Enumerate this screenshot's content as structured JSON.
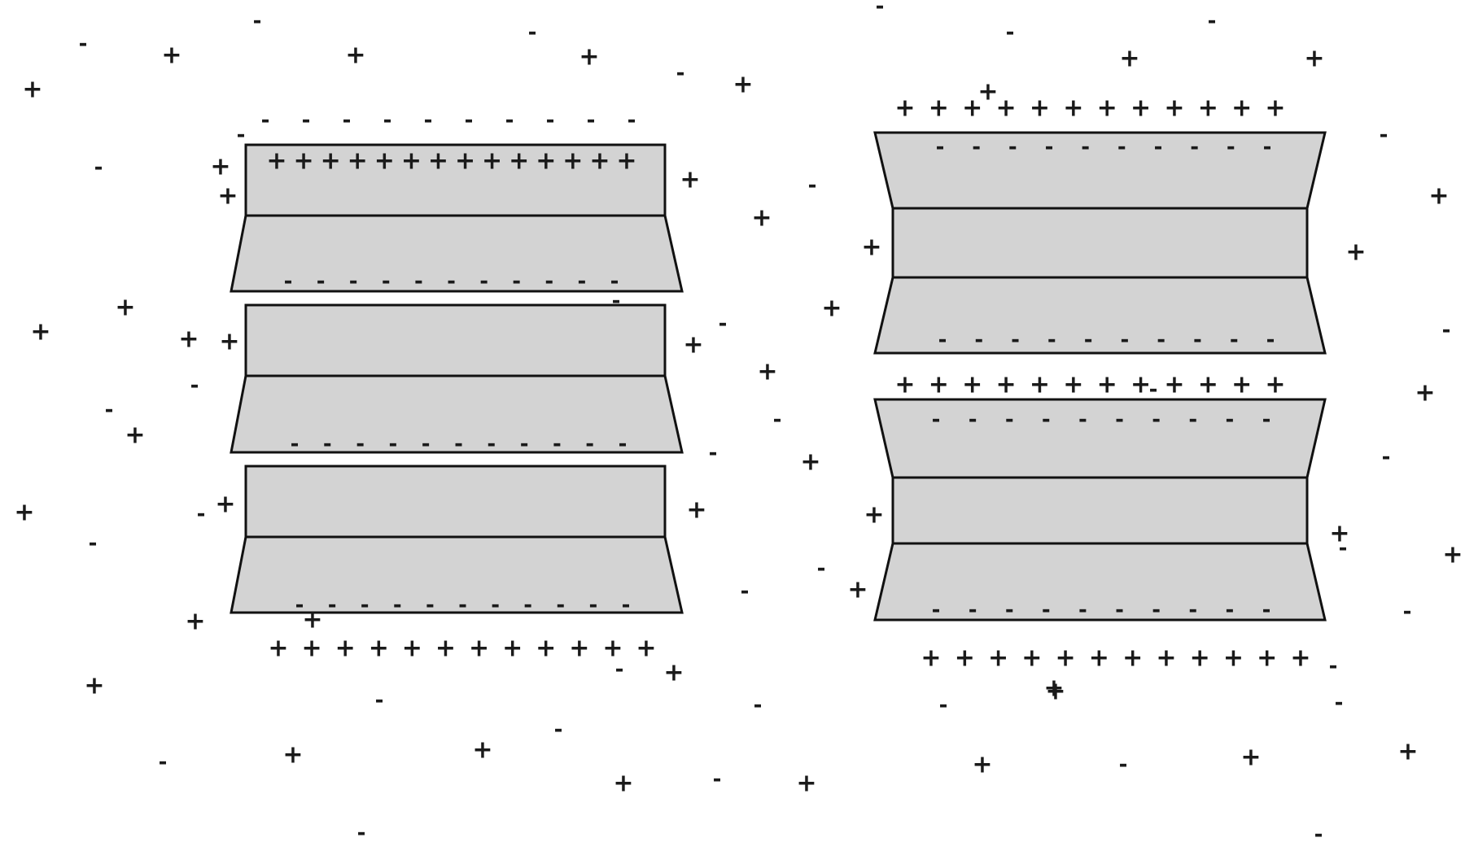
{
  "symbols": {
    "positive": "+",
    "negative": "-"
  },
  "colors": {
    "block_fill": "#d3d3d3",
    "outline": "#111111",
    "charge": "#1a1a1a"
  },
  "left_stack": {
    "layers": [
      {
        "name": "layer-1",
        "shape": "rectangle-over-trapezoid"
      },
      {
        "name": "layer-2",
        "shape": "rectangle-over-trapezoid"
      },
      {
        "name": "layer-3",
        "shape": "rectangle-over-trapezoid"
      }
    ]
  },
  "right_stack": {
    "layers": [
      {
        "name": "layer-1",
        "shape": "inverted-trapezoid-rectangle-trapezoid"
      },
      {
        "name": "layer-2",
        "shape": "inverted-trapezoid-rectangle-trapezoid"
      }
    ]
  }
}
